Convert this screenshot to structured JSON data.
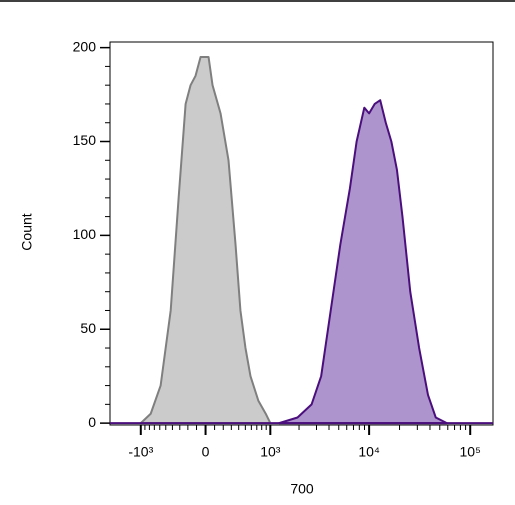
{
  "chart_data": {
    "type": "area",
    "x_label": "700",
    "y_label": "Count",
    "xscale": "biexponential",
    "xlim": [
      -2100,
      168000
    ],
    "xticks": [
      {
        "value": -1000,
        "label": "-10³"
      },
      0,
      {
        "value": 1000,
        "label": "10³"
      },
      {
        "value": 10000,
        "label": "10⁴"
      },
      {
        "value": 100000,
        "label": "10⁵"
      }
    ],
    "xminor": [
      -900,
      -800,
      -700,
      -600,
      -500,
      -400,
      -300,
      -200,
      -100,
      100,
      200,
      300,
      400,
      500,
      600,
      700,
      800,
      900,
      2000,
      3000,
      4000,
      5000,
      6000,
      7000,
      8000,
      9000,
      20000,
      30000,
      40000,
      50000,
      60000,
      70000,
      80000,
      90000
    ],
    "ylim": [
      -1,
      203
    ],
    "yticks": [
      0,
      50,
      100,
      150,
      200
    ],
    "yminor": [
      10,
      20,
      30,
      40,
      60,
      70,
      80,
      90,
      110,
      120,
      130,
      140,
      160,
      170,
      180,
      190
    ],
    "series": [
      {
        "color": "#7f7f7f",
        "fill": "#cbcbcb",
        "x": [
          -1000,
          -773,
          -585,
          -425,
          -315,
          -227,
          -168,
          -111,
          -55,
          33,
          77,
          168,
          264,
          356,
          425,
          502,
          585,
          730,
          889,
          1000
        ],
        "values": [
          0,
          5,
          20,
          60,
          120,
          170,
          180,
          185,
          195,
          195,
          180,
          165,
          140,
          95,
          60,
          40,
          25,
          12,
          5,
          0
        ]
      },
      {
        "color": "#4b0f7d",
        "fill": "#ad94cc",
        "x": [
          1245,
          1930,
          2680,
          3340,
          4160,
          5180,
          6450,
          7520,
          8960,
          10000,
          11350,
          12880,
          14620,
          16600,
          18840,
          21380,
          25530,
          31260,
          38230,
          45640,
          58750
        ],
        "values": [
          0,
          3,
          10,
          25,
          60,
          95,
          125,
          150,
          168,
          165,
          170,
          172,
          160,
          150,
          135,
          110,
          70,
          40,
          15,
          3,
          0
        ]
      }
    ]
  }
}
